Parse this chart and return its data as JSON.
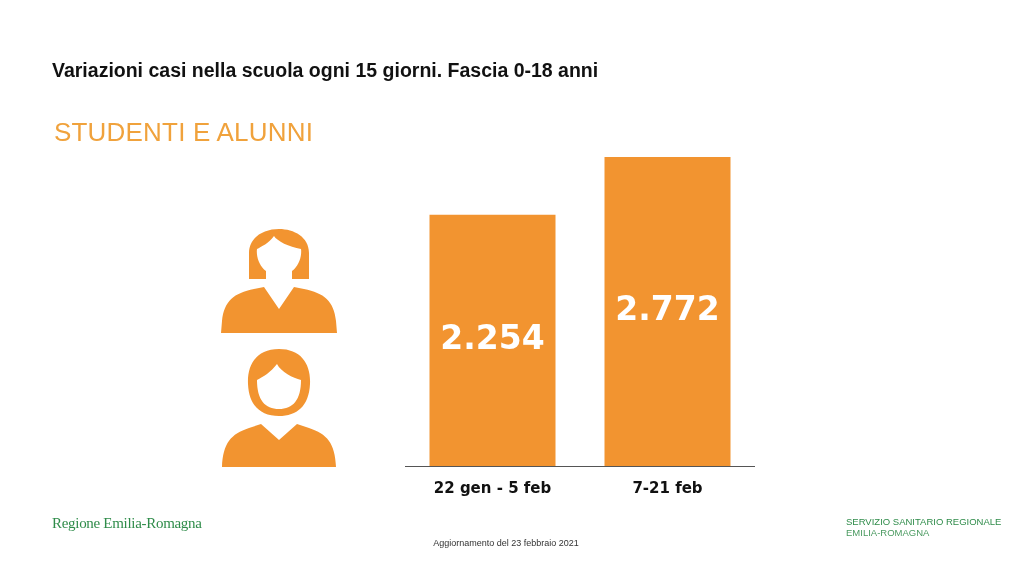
{
  "chart_data": {
    "type": "bar",
    "title": "Variazioni casi nella scuola ogni 15 giorni. Fascia 0-18 anni",
    "subtitle": "STUDENTI E ALUNNI",
    "categories": [
      "22 gen - 5 feb",
      "7-21 feb"
    ],
    "values": [
      2254,
      2772
    ],
    "value_labels": [
      "2.254",
      "2.772"
    ],
    "color": "#f29430",
    "tick_labels": "x",
    "annotations": [
      "Aggiornamento del 23 febbraio 2021",
      "Regione Emilia-Romagna",
      "SERVIZIO SANITARIO REGIONALE",
      "EMILIA-ROMAGNA"
    ]
  }
}
